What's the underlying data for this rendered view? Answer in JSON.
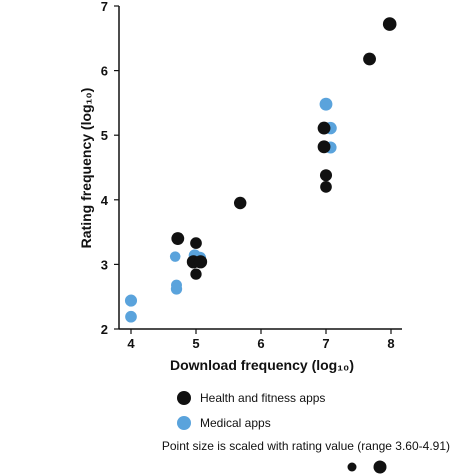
{
  "chart_data": {
    "type": "scatter",
    "xlabel": "Download frequency (log₁₀)",
    "ylabel": "Rating frequency (log₁₀)",
    "xlim": [
      4,
      8
    ],
    "ylim": [
      2,
      7
    ],
    "xticks": [
      "4",
      "5",
      "6",
      "7",
      "8"
    ],
    "yticks": [
      "2",
      "3",
      "4",
      "5",
      "6",
      "7"
    ],
    "grid": false,
    "legend_position": "bottom",
    "series": [
      {
        "name": "Health and fitness apps",
        "color": "#111111",
        "points": [
          {
            "x": 4.72,
            "y": 3.4,
            "size": 4.6
          },
          {
            "x": 5.0,
            "y": 3.33,
            "size": 4.3
          },
          {
            "x": 4.96,
            "y": 3.04,
            "size": 4.7
          },
          {
            "x": 5.07,
            "y": 3.04,
            "size": 4.7
          },
          {
            "x": 5.0,
            "y": 2.85,
            "size": 4.2
          },
          {
            "x": 5.68,
            "y": 3.95,
            "size": 4.5
          },
          {
            "x": 6.97,
            "y": 5.11,
            "size": 4.6
          },
          {
            "x": 6.97,
            "y": 4.82,
            "size": 4.6
          },
          {
            "x": 7.0,
            "y": 4.38,
            "size": 4.4
          },
          {
            "x": 7.0,
            "y": 4.2,
            "size": 4.3
          },
          {
            "x": 7.67,
            "y": 6.18,
            "size": 4.6
          },
          {
            "x": 7.98,
            "y": 6.72,
            "size": 4.8
          }
        ]
      },
      {
        "name": "Medical apps",
        "color": "#5aa3dc",
        "points": [
          {
            "x": 4.0,
            "y": 2.44,
            "size": 4.4
          },
          {
            "x": 4.0,
            "y": 2.19,
            "size": 4.3
          },
          {
            "x": 4.68,
            "y": 3.12,
            "size": 4.0
          },
          {
            "x": 4.7,
            "y": 2.68,
            "size": 4.1
          },
          {
            "x": 4.7,
            "y": 2.62,
            "size": 4.2
          },
          {
            "x": 4.98,
            "y": 3.14,
            "size": 4.4
          },
          {
            "x": 5.06,
            "y": 3.1,
            "size": 4.5
          },
          {
            "x": 7.0,
            "y": 5.48,
            "size": 4.6
          },
          {
            "x": 7.07,
            "y": 5.11,
            "size": 4.5
          },
          {
            "x": 7.07,
            "y": 4.81,
            "size": 4.4
          }
        ]
      }
    ],
    "note": "Point size is scaled with rating value (range 3.60-4.91)"
  }
}
